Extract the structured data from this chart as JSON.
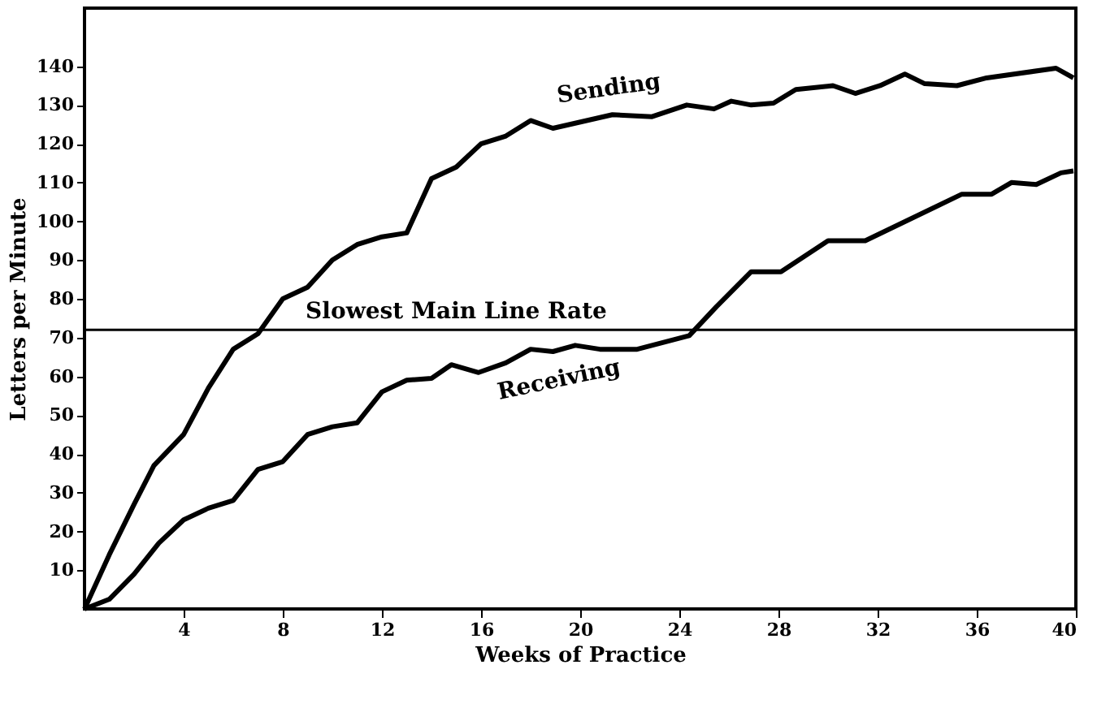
{
  "chart_data": {
    "type": "line",
    "xlabel": "Weeks of Practice",
    "ylabel": "Letters per Minute",
    "xlim": [
      0,
      40
    ],
    "ylim": [
      0,
      155
    ],
    "xticks": [
      4,
      8,
      12,
      16,
      20,
      24,
      28,
      32,
      36,
      40
    ],
    "yticks": [
      10,
      20,
      30,
      40,
      50,
      60,
      70,
      80,
      90,
      100,
      110,
      120,
      130,
      140
    ],
    "grid": false,
    "marker": "none",
    "line_style": "solid",
    "series": [
      {
        "name": "Sending",
        "color": "#000000",
        "x": [
          0,
          1,
          2,
          2.8,
          4,
          5,
          6,
          7,
          8,
          9,
          10,
          11,
          12,
          13,
          14,
          15,
          16,
          17,
          18,
          18.9,
          21.3,
          22.9,
          24.3,
          25.4,
          26.1,
          26.9,
          27.8,
          28.7,
          30.2,
          31.1,
          32.1,
          33.1,
          33.9,
          35.2,
          36.4,
          39.2,
          39.9
        ],
        "values": [
          0,
          14,
          27,
          37,
          45,
          57,
          67,
          71,
          80,
          83,
          90,
          94,
          96,
          97,
          111,
          114,
          120,
          122,
          126,
          124,
          127.5,
          127,
          130,
          129,
          131,
          130,
          130.5,
          134,
          135,
          133,
          135,
          138,
          135.5,
          135,
          137,
          139.5,
          137
        ]
      },
      {
        "name": "Receiving",
        "color": "#000000",
        "x": [
          0,
          1,
          2,
          3,
          4,
          5,
          6,
          7,
          8,
          9,
          10,
          11,
          12,
          13,
          14,
          14.8,
          15.9,
          17,
          18,
          18.9,
          19.8,
          20.8,
          22.3,
          24.4,
          25.5,
          26.9,
          28.1,
          30,
          31.5,
          35.4,
          36.6,
          37.4,
          38.4,
          39.4,
          39.9
        ],
        "values": [
          0,
          2.5,
          9,
          17,
          23,
          26,
          28,
          36,
          38,
          45,
          47,
          48,
          56,
          59,
          59.5,
          63,
          61,
          63.5,
          67,
          66.4,
          68,
          67,
          67,
          70.5,
          78,
          87,
          87,
          95,
          95,
          107,
          107,
          110,
          109.5,
          112.5,
          113
        ]
      }
    ],
    "ref_lines": [
      {
        "axis": "y",
        "value": 72,
        "label": "Slowest Main Line Rate",
        "color": "#000000",
        "line_style": "solid"
      }
    ]
  }
}
